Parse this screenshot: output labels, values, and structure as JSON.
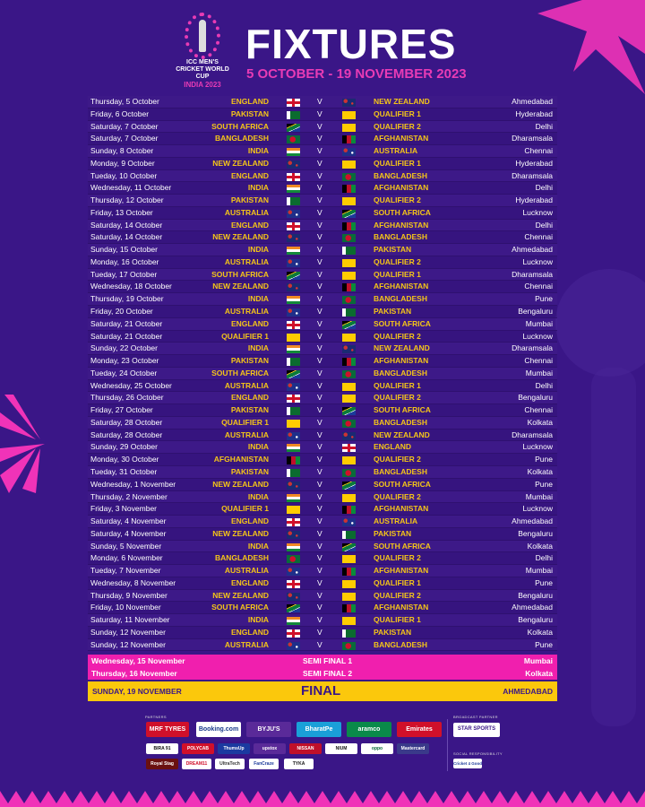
{
  "header": {
    "logo": {
      "line1": "ICC MEN'S",
      "line2": "CRICKET WORLD CUP",
      "line3": "INDIA 2023"
    },
    "title": "FIXTURES",
    "date_range": "5 OCTOBER - 19 NOVEMBER 2023"
  },
  "colors": {
    "background": "#3a1687",
    "accent_pink": "#f01fae",
    "team_yellow": "#f5c518",
    "final_yellow": "#fbc80c"
  },
  "vs_label": "V",
  "matches": [
    {
      "date": "Thursday, 5 October",
      "team1": "ENGLAND",
      "flag1": "england",
      "team2": "NEW ZEALAND",
      "flag2": "new-zealand",
      "venue": "Ahmedabad"
    },
    {
      "date": "Friday, 6 October",
      "team1": "PAKISTAN",
      "flag1": "pakistan",
      "team2": "QUALIFIER 1",
      "flag2": "qualifier",
      "venue": "Hyderabad"
    },
    {
      "date": "Saturday, 7 October",
      "team1": "SOUTH AFRICA",
      "flag1": "south-africa",
      "team2": "QUALIFIER 2",
      "flag2": "qualifier",
      "venue": "Delhi"
    },
    {
      "date": "Saturday, 7 October",
      "team1": "BANGLADESH",
      "flag1": "bangladesh",
      "team2": "AFGHANISTAN",
      "flag2": "afghanistan",
      "venue": "Dharamsala"
    },
    {
      "date": "Sunday, 8 October",
      "team1": "INDIA",
      "flag1": "india",
      "team2": "AUSTRALIA",
      "flag2": "australia",
      "venue": "Chennai"
    },
    {
      "date": "Monday, 9 October",
      "team1": "NEW ZEALAND",
      "flag1": "new-zealand",
      "team2": "QUALIFIER 1",
      "flag2": "qualifier",
      "venue": "Hyderabad"
    },
    {
      "date": "Tueday, 10 October",
      "team1": "ENGLAND",
      "flag1": "england",
      "team2": "BANGLADESH",
      "flag2": "bangladesh",
      "venue": "Dharamsala"
    },
    {
      "date": "Wednesday, 11 October",
      "team1": "INDIA",
      "flag1": "india",
      "team2": "AFGHANISTAN",
      "flag2": "afghanistan",
      "venue": "Delhi"
    },
    {
      "date": "Thursday, 12 October",
      "team1": "PAKISTAN",
      "flag1": "pakistan",
      "team2": "QUALIFIER 2",
      "flag2": "qualifier",
      "venue": "Hyderabad"
    },
    {
      "date": "Friday, 13 October",
      "team1": "AUSTRALIA",
      "flag1": "australia",
      "team2": "SOUTH AFRICA",
      "flag2": "south-africa",
      "venue": "Lucknow"
    },
    {
      "date": "Saturday, 14 October",
      "team1": "ENGLAND",
      "flag1": "england",
      "team2": "AFGHANISTAN",
      "flag2": "afghanistan",
      "venue": "Delhi"
    },
    {
      "date": "Saturday, 14 October",
      "team1": "NEW ZEALAND",
      "flag1": "new-zealand",
      "team2": "BANGLADESH",
      "flag2": "bangladesh",
      "venue": "Chennai"
    },
    {
      "date": "Sunday, 15 October",
      "team1": "INDIA",
      "flag1": "india",
      "team2": "PAKISTAN",
      "flag2": "pakistan",
      "venue": "Ahmedabad"
    },
    {
      "date": "Monday, 16 October",
      "team1": "AUSTRALIA",
      "flag1": "australia",
      "team2": "QUALIFIER 2",
      "flag2": "qualifier",
      "venue": "Lucknow"
    },
    {
      "date": "Tueday, 17 October",
      "team1": "SOUTH AFRICA",
      "flag1": "south-africa",
      "team2": "QUALIFIER 1",
      "flag2": "qualifier",
      "venue": "Dharamsala"
    },
    {
      "date": "Wednesday, 18 October",
      "team1": "NEW ZEALAND",
      "flag1": "new-zealand",
      "team2": "AFGHANISTAN",
      "flag2": "afghanistan",
      "venue": "Chennai"
    },
    {
      "date": "Thursday, 19 October",
      "team1": "INDIA",
      "flag1": "india",
      "team2": "BANGLADESH",
      "flag2": "bangladesh",
      "venue": "Pune"
    },
    {
      "date": "Friday, 20 October",
      "team1": "AUSTRALIA",
      "flag1": "australia",
      "team2": "PAKISTAN",
      "flag2": "pakistan",
      "venue": "Bengaluru"
    },
    {
      "date": "Saturday, 21 October",
      "team1": "ENGLAND",
      "flag1": "england",
      "team2": "SOUTH AFRICA",
      "flag2": "south-africa",
      "venue": "Mumbai"
    },
    {
      "date": "Saturday, 21 October",
      "team1": "QUALIFIER 1",
      "flag1": "qualifier",
      "team2": "QUALIFIER 2",
      "flag2": "qualifier",
      "venue": "Lucknow"
    },
    {
      "date": "Sunday, 22 October",
      "team1": "INDIA",
      "flag1": "india",
      "team2": "NEW ZEALAND",
      "flag2": "new-zealand",
      "venue": "Dharamsala"
    },
    {
      "date": "Monday, 23 October",
      "team1": "PAKISTAN",
      "flag1": "pakistan",
      "team2": "AFGHANISTAN",
      "flag2": "afghanistan",
      "venue": "Chennai"
    },
    {
      "date": "Tueday, 24 October",
      "team1": "SOUTH AFRICA",
      "flag1": "south-africa",
      "team2": "BANGLADESH",
      "flag2": "bangladesh",
      "venue": "Mumbai"
    },
    {
      "date": "Wednesday, 25 October",
      "team1": "AUSTRALIA",
      "flag1": "australia",
      "team2": "QUALIFIER 1",
      "flag2": "qualifier",
      "venue": "Delhi"
    },
    {
      "date": "Thursday, 26 October",
      "team1": "ENGLAND",
      "flag1": "england",
      "team2": "QUALIFIER 2",
      "flag2": "qualifier",
      "venue": "Bengaluru"
    },
    {
      "date": "Friday, 27 October",
      "team1": "PAKISTAN",
      "flag1": "pakistan",
      "team2": "SOUTH AFRICA",
      "flag2": "south-africa",
      "venue": "Chennai"
    },
    {
      "date": "Saturday, 28 October",
      "team1": "QUALIFIER 1",
      "flag1": "qualifier",
      "team2": "BANGLADESH",
      "flag2": "bangladesh",
      "venue": "Kolkata"
    },
    {
      "date": "Saturday, 28 October",
      "team1": "AUSTRALIA",
      "flag1": "australia",
      "team2": "NEW ZEALAND",
      "flag2": "new-zealand",
      "venue": "Dharamsala"
    },
    {
      "date": "Sunday, 29 October",
      "team1": "INDIA",
      "flag1": "india",
      "team2": "ENGLAND",
      "flag2": "england",
      "venue": "Lucknow"
    },
    {
      "date": "Monday, 30 October",
      "team1": "AFGHANISTAN",
      "flag1": "afghanistan",
      "team2": "QUALIFIER 2",
      "flag2": "qualifier",
      "venue": "Pune"
    },
    {
      "date": "Tueday, 31 October",
      "team1": "PAKISTAN",
      "flag1": "pakistan",
      "team2": "BANGLADESH",
      "flag2": "bangladesh",
      "venue": "Kolkata"
    },
    {
      "date": "Wednesday, 1 November",
      "team1": "NEW ZEALAND",
      "flag1": "new-zealand",
      "team2": "SOUTH AFRICA",
      "flag2": "south-africa",
      "venue": "Pune"
    },
    {
      "date": "Thursday, 2 November",
      "team1": "INDIA",
      "flag1": "india",
      "team2": "QUALIFIER 2",
      "flag2": "qualifier",
      "venue": "Mumbai"
    },
    {
      "date": "Friday, 3 November",
      "team1": "QUALIFIER 1",
      "flag1": "qualifier",
      "team2": "AFGHANISTAN",
      "flag2": "afghanistan",
      "venue": "Lucknow"
    },
    {
      "date": "Saturday, 4 November",
      "team1": "ENGLAND",
      "flag1": "england",
      "team2": "AUSTRALIA",
      "flag2": "australia",
      "venue": "Ahmedabad"
    },
    {
      "date": "Saturday, 4 November",
      "team1": "NEW ZEALAND",
      "flag1": "new-zealand",
      "team2": "PAKISTAN",
      "flag2": "pakistan",
      "venue": "Bengaluru"
    },
    {
      "date": "Sunday, 5 November",
      "team1": "INDIA",
      "flag1": "india",
      "team2": "SOUTH AFRICA",
      "flag2": "south-africa",
      "venue": "Kolkata"
    },
    {
      "date": "Monday, 6 November",
      "team1": "BANGLADESH",
      "flag1": "bangladesh",
      "team2": "QUALIFIER 2",
      "flag2": "qualifier",
      "venue": "Delhi"
    },
    {
      "date": "Tueday, 7 November",
      "team1": "AUSTRALIA",
      "flag1": "australia",
      "team2": "AFGHANISTAN",
      "flag2": "afghanistan",
      "venue": "Mumbai"
    },
    {
      "date": "Wednesday, 8 November",
      "team1": "ENGLAND",
      "flag1": "england",
      "team2": "QUALIFIER 1",
      "flag2": "qualifier",
      "venue": "Pune"
    },
    {
      "date": "Thursday, 9 November",
      "team1": "NEW ZEALAND",
      "flag1": "new-zealand",
      "team2": "QUALIFIER 2",
      "flag2": "qualifier",
      "venue": "Bengaluru"
    },
    {
      "date": "Friday, 10 November",
      "team1": "SOUTH AFRICA",
      "flag1": "south-africa",
      "team2": "AFGHANISTAN",
      "flag2": "afghanistan",
      "venue": "Ahmedabad"
    },
    {
      "date": "Saturday, 11 November",
      "team1": "INDIA",
      "flag1": "india",
      "team2": "QUALIFIER 1",
      "flag2": "qualifier",
      "venue": "Bengaluru"
    },
    {
      "date": "Sunday, 12 November",
      "team1": "ENGLAND",
      "flag1": "england",
      "team2": "PAKISTAN",
      "flag2": "pakistan",
      "venue": "Kolkata"
    },
    {
      "date": "Sunday, 12 November",
      "team1": "AUSTRALIA",
      "flag1": "australia",
      "team2": "BANGLADESH",
      "flag2": "bangladesh",
      "venue": "Pune"
    }
  ],
  "semis": [
    {
      "date": "Wednesday, 15 November",
      "name": "SEMI FINAL 1",
      "venue": "Mumbai"
    },
    {
      "date": "Thursday, 16 November",
      "name": "SEMI FINAL 2",
      "venue": "Kolkata"
    }
  ],
  "final": {
    "date": "SUNDAY, 19 NOVEMBER",
    "name": "FINAL",
    "venue": "AHMEDABAD"
  },
  "sponsors": {
    "partners_label": "PARTNERS",
    "broadcast_label": "BROADCAST PARTNER",
    "social_label": "SOCIAL RESPONSIBILITY",
    "partners": [
      "MRF TYRES",
      "Booking.com",
      "BYJU'S",
      "BharatPe",
      "aramco",
      "Emirates",
      "BIRA 91",
      "POLYCAB",
      "ThumsUp",
      "upstox",
      "NISSAN",
      "NIUM",
      "oppo",
      "Mastercard",
      "Royal Stag",
      "DREAM11",
      "UltraTech",
      "FanCraze",
      "TYKA"
    ],
    "broadcast": "STAR SPORTS",
    "social": "Cricket 4 Good"
  }
}
